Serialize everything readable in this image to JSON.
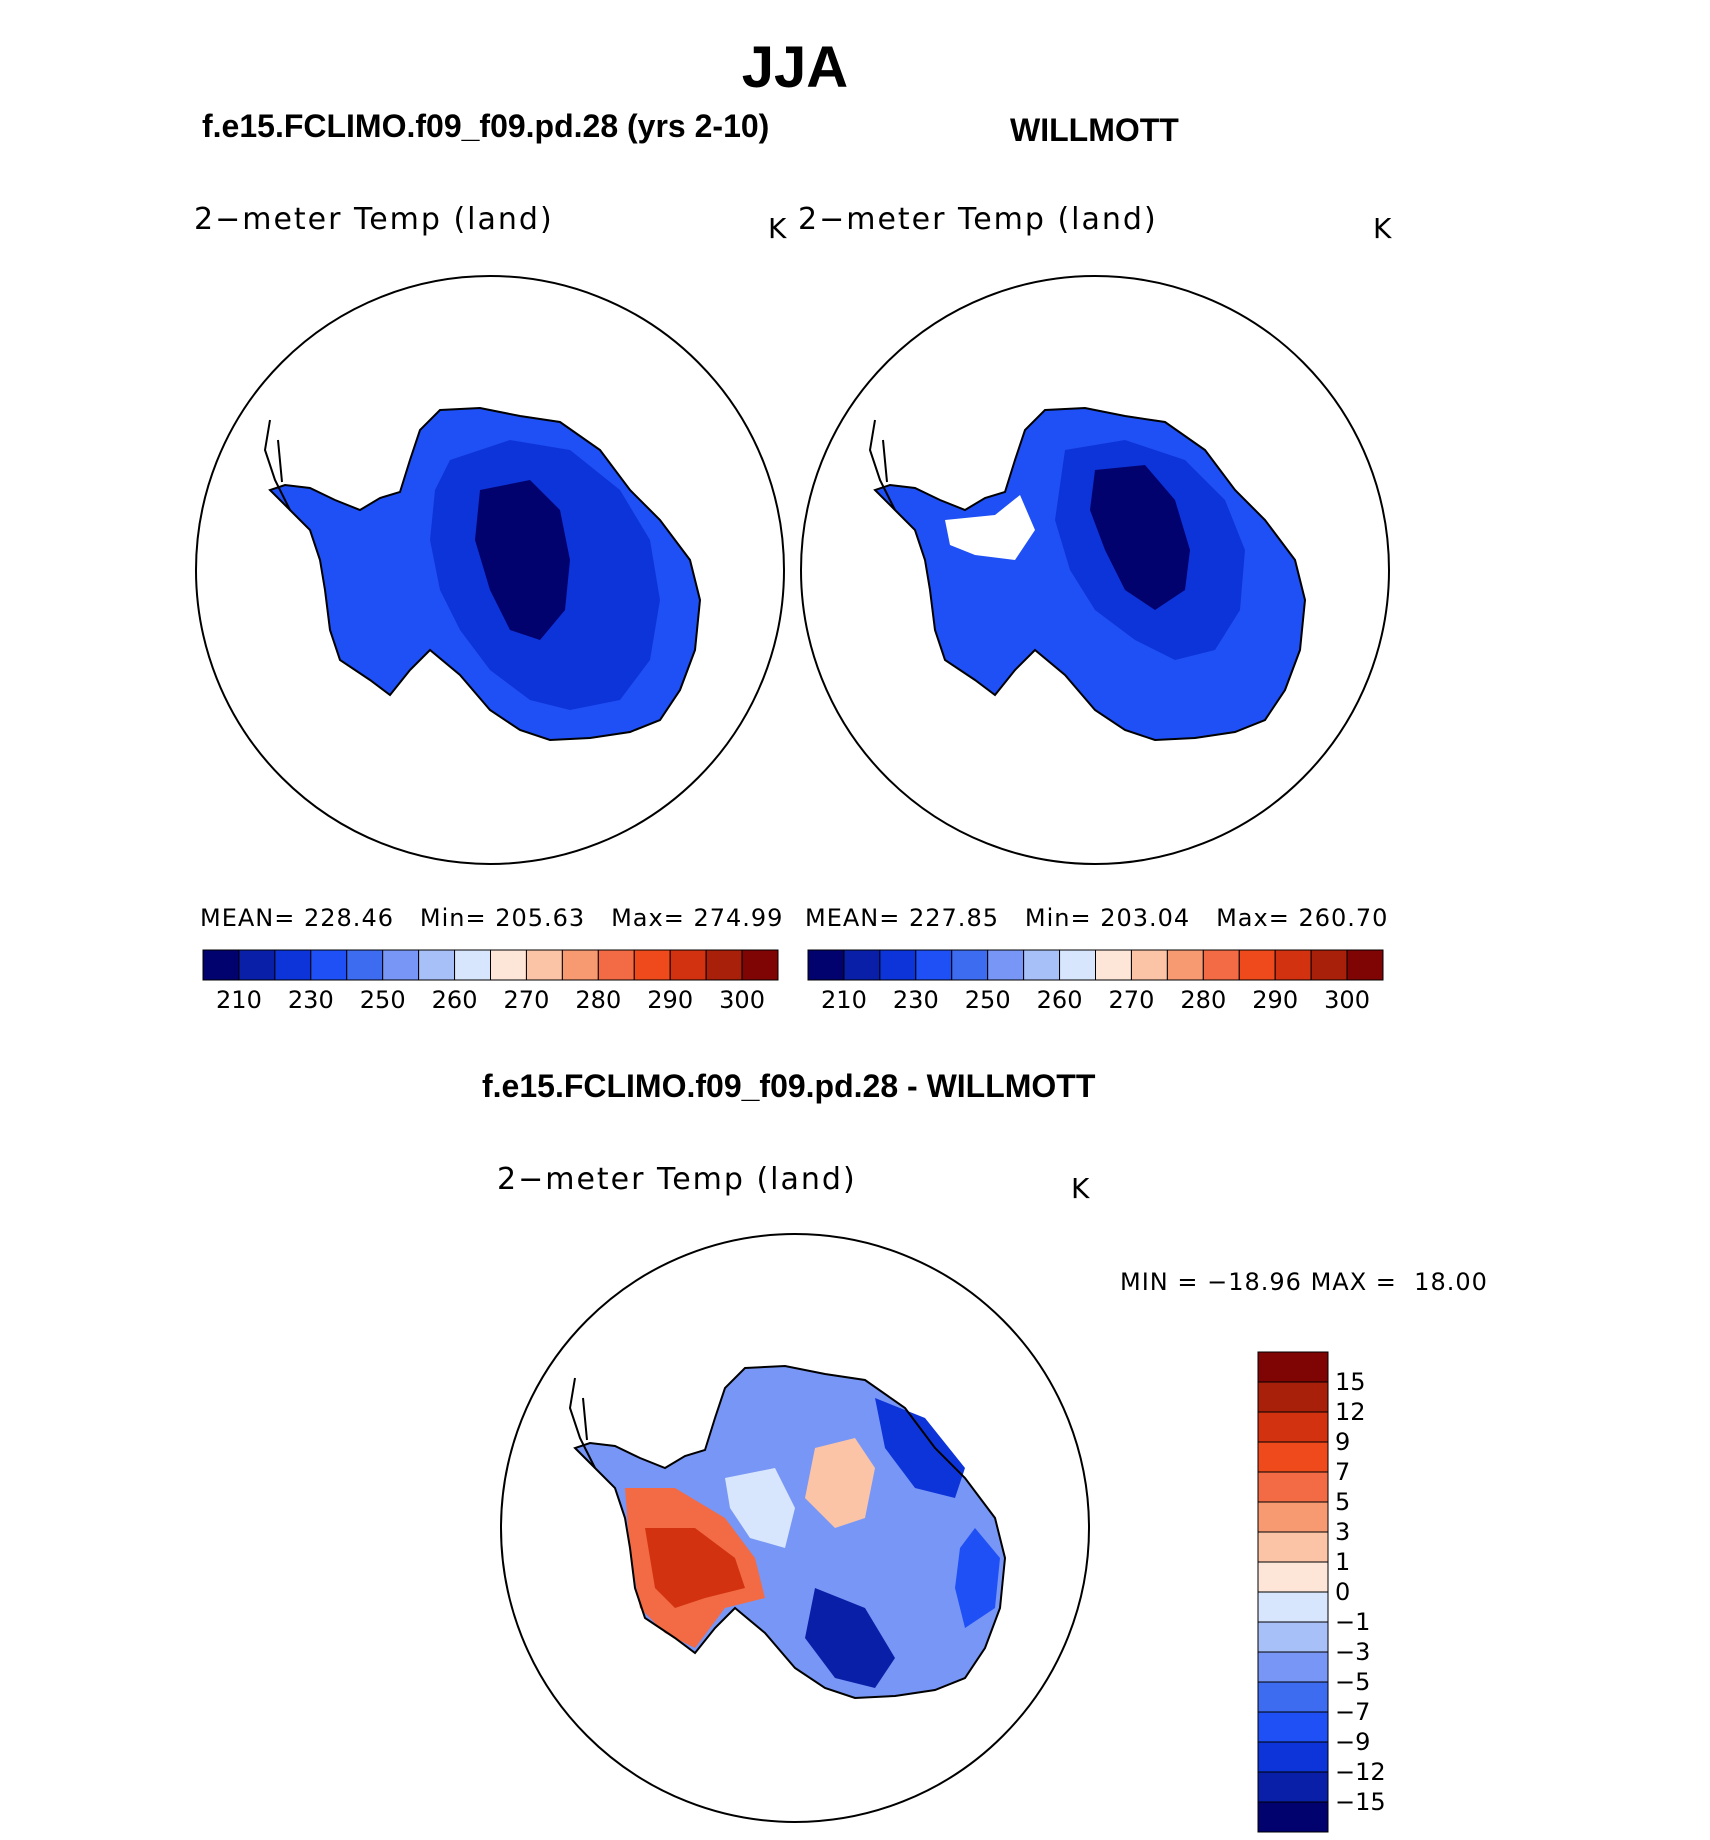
{
  "title": "JJA",
  "panels": [
    {
      "case_name": "f.e15.FCLIMO.f09_f09.pd.28 (yrs 2-10)",
      "variable": "2−meter Temp (land)",
      "units": "K",
      "stats": {
        "mean_label": "MEAN=",
        "mean": "228.46",
        "min_label": "Min=",
        "min": "205.63",
        "max_label": "Max=",
        "max": "274.99"
      }
    },
    {
      "case_name": "WILLMOTT",
      "variable": "2−meter Temp (land)",
      "units": "K",
      "stats": {
        "mean_label": "MEAN=",
        "mean": "227.85",
        "min_label": "Min=",
        "min": "203.04",
        "max_label": "Max=",
        "max": "260.70"
      }
    }
  ],
  "abs_colorbar": {
    "tick_labels": [
      "210",
      "230",
      "250",
      "260",
      "270",
      "280",
      "290",
      "300"
    ],
    "colors": [
      "#02026e",
      "#0a1fa8",
      "#0d34d9",
      "#1f50f5",
      "#3d6cf0",
      "#7896f5",
      "#a8c0f8",
      "#d7e6fc",
      "#fde6d8",
      "#fbc4a6",
      "#f79a72",
      "#f26b44",
      "#ef4a1b",
      "#d33210",
      "#a8200a",
      "#7f0505"
    ]
  },
  "difference": {
    "title": "f.e15.FCLIMO.f09_f09.pd.28 - WILLMOTT",
    "variable": "2−meter Temp (land)",
    "units": "K",
    "min_label": "MIN =",
    "min": "−18.96",
    "max_label": "MAX =",
    "max": "18.00",
    "colorbar": {
      "tick_labels": [
        "15",
        "12",
        "9",
        "7",
        "5",
        "3",
        "1",
        "0",
        "−1",
        "−3",
        "−5",
        "−7",
        "−9",
        "−12",
        "−15"
      ],
      "colors": [
        "#7f0505",
        "#a8200a",
        "#d33210",
        "#ef4a1b",
        "#f26b44",
        "#f79a72",
        "#fbc4a6",
        "#fde6d8",
        "#d7e6fc",
        "#a8c0f8",
        "#7896f5",
        "#3d6cf0",
        "#1f50f5",
        "#0d34d9",
        "#0a1fa8",
        "#02026e"
      ]
    }
  }
}
